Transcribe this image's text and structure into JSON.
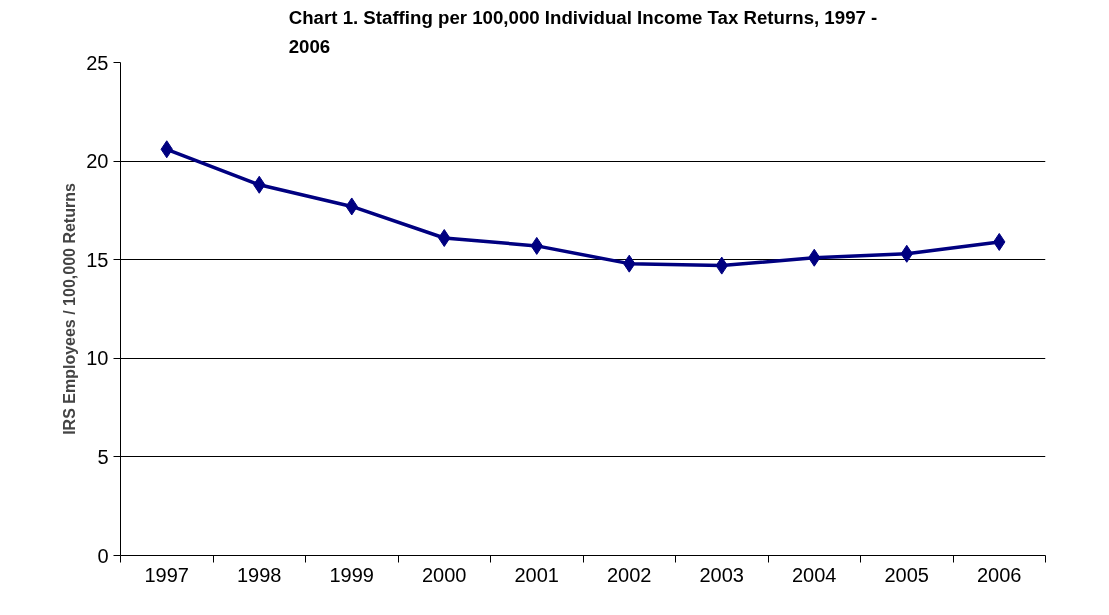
{
  "chart_data": {
    "type": "line",
    "title": "Chart 1. Staffing per 100,000 Individual Income Tax Returns, 1997 - 2006",
    "ylabel": "IRS Employees / 100,000 Returns",
    "categories": [
      "1997",
      "1998",
      "1999",
      "2000",
      "2001",
      "2002",
      "2003",
      "2004",
      "2005",
      "2006"
    ],
    "series": [
      {
        "color": "#000080",
        "values": [
          20.6,
          18.8,
          17.7,
          16.1,
          15.7,
          14.8,
          14.7,
          15.1,
          15.3,
          15.9
        ]
      }
    ],
    "ylim": [
      0,
      25
    ],
    "yticks": [
      0,
      5,
      10,
      15,
      20,
      25
    ],
    "grid": "y",
    "marker": "diamond",
    "line_style": "solid"
  }
}
